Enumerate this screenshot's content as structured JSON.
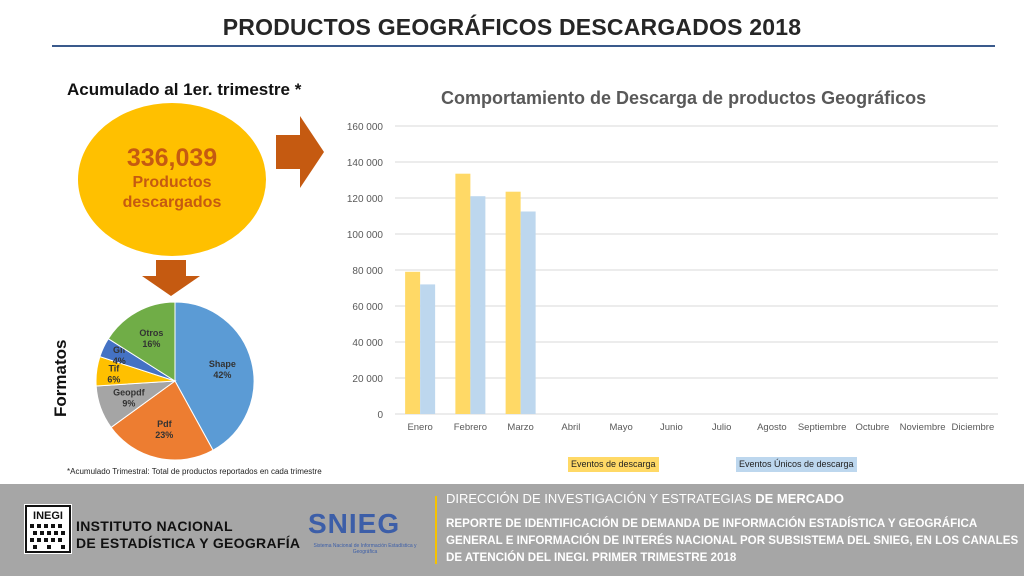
{
  "page": {
    "title": "PRODUCTOS GEOGRÁFICOS DESCARGADOS 2018",
    "accumulated_label": "Acumulado al 1er. trimestre *",
    "total_value": "336,039",
    "total_label_line1": "Productos",
    "total_label_line2": "descargados",
    "formats_label": "Formatos",
    "footnote": "*Acumulado Trimestral: Total de productos reportados en cada trimestre"
  },
  "colors": {
    "circle": "#ffc000",
    "arrow": "#c55a11",
    "bar_eventos": "#ffd966",
    "bar_unicos": "#bdd7ee",
    "footer_bg": "#a6a6a6"
  },
  "pie_data": {
    "type": "pie",
    "slices": [
      {
        "label": "Shape",
        "pct_label": "42%",
        "value": 42,
        "color": "#5b9bd5"
      },
      {
        "label": "Pdf",
        "pct_label": "23%",
        "value": 23,
        "color": "#ed7d31"
      },
      {
        "label": "Geopdf",
        "pct_label": "9%",
        "value": 9,
        "color": "#a5a5a5"
      },
      {
        "label": "Tif",
        "pct_label": "6%",
        "value": 6,
        "color": "#ffc000"
      },
      {
        "label": "Gif",
        "pct_label": "4%",
        "value": 4,
        "color": "#4472c4"
      },
      {
        "label": "Otros",
        "pct_label": "16%",
        "value": 16,
        "color": "#70ad47"
      }
    ]
  },
  "chart_data": {
    "type": "bar",
    "title": "Comportamiento de Descarga de productos Geográficos",
    "categories": [
      "Enero",
      "Febrero",
      "Marzo",
      "Abril",
      "Mayo",
      "Junio",
      "Julio",
      "Agosto",
      "Septiembre",
      "Octubre",
      "Noviembre",
      "Diciembre"
    ],
    "series": [
      {
        "name": "Eventos de descarga",
        "values": [
          79000,
          133500,
          123500,
          null,
          null,
          null,
          null,
          null,
          null,
          null,
          null,
          null
        ]
      },
      {
        "name": "Eventos Únicos de descarga",
        "values": [
          72000,
          121000,
          112500,
          null,
          null,
          null,
          null,
          null,
          null,
          null,
          null,
          null
        ]
      }
    ],
    "ylim": [
      0,
      160000
    ],
    "yticks": [
      0,
      20000,
      40000,
      60000,
      80000,
      100000,
      120000,
      140000,
      160000
    ],
    "ytick_labels": [
      "0",
      "20 000",
      "40 000",
      "60 000",
      "80 000",
      "100 000",
      "120 000",
      "140 000",
      "160 000"
    ],
    "grid": true,
    "legend": "bottom"
  },
  "footer": {
    "org_line1": "INSTITUTO NACIONAL",
    "org_line2": "DE ESTADÍSTICA Y GEOGRAFÍA",
    "inegi_mark": "INEGI",
    "snieg_name": "SNIEG",
    "snieg_caption": "Sistema Nacional de Información Estadística y Geográfica",
    "heading_part1": "DIRECCIÓN DE INVESTIGACIÓN Y ESTRATEGIAS",
    "heading_part2": "DE MERCADO",
    "report_text": "REPORTE DE IDENTIFICACIÓN DE DEMANDA DE INFORMACIÓN ESTADÍSTICA Y GEOGRÁFICA GENERAL E INFORMACIÓN DE INTERÉS NACIONAL POR SUBSISTEMA DEL SNIEG, EN LOS CANALES DE ATENCIÓN DEL INEGI. PRIMER TRIMESTRE 2018"
  }
}
